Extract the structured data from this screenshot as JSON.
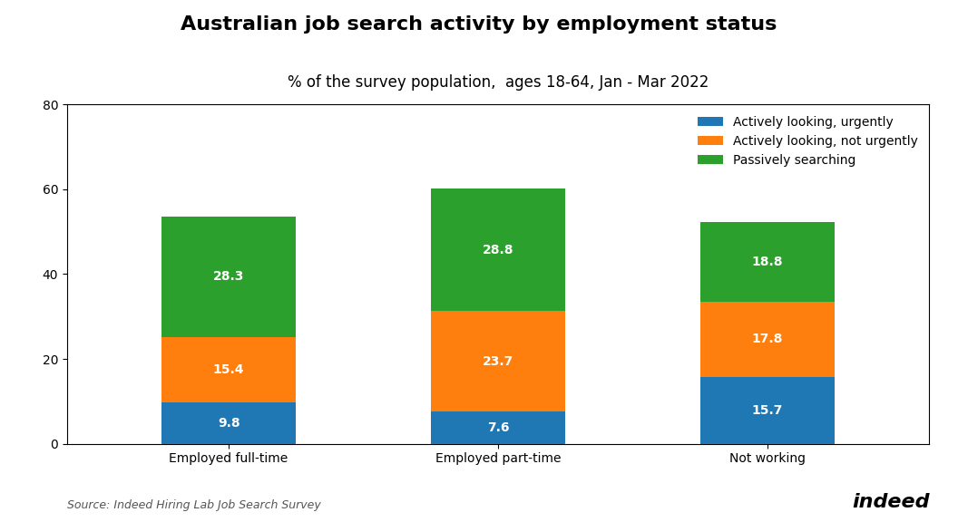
{
  "chart_data": {
    "type": "bar",
    "stacked": true,
    "title": "Australian job search activity by employment status",
    "subtitle": "% of the survey population,  ages 18-64, Jan - Mar 2022",
    "categories": [
      "Employed full-time",
      "Employed part-time",
      "Not working"
    ],
    "series": [
      {
        "name": "Actively looking, urgently",
        "values": [
          9.8,
          7.6,
          15.7
        ]
      },
      {
        "name": "Actively looking, not urgently",
        "values": [
          15.4,
          23.7,
          17.8
        ]
      },
      {
        "name": "Passively searching",
        "values": [
          28.3,
          28.8,
          18.8
        ]
      }
    ],
    "ylim": [
      0,
      80
    ],
    "yticks": [
      0,
      20,
      40,
      60,
      80
    ],
    "data_labels": true,
    "legend": "upper right",
    "grid": false,
    "annotations": [
      "Source: Indeed Hiring Lab Job Search Survey",
      "indeed"
    ]
  }
}
